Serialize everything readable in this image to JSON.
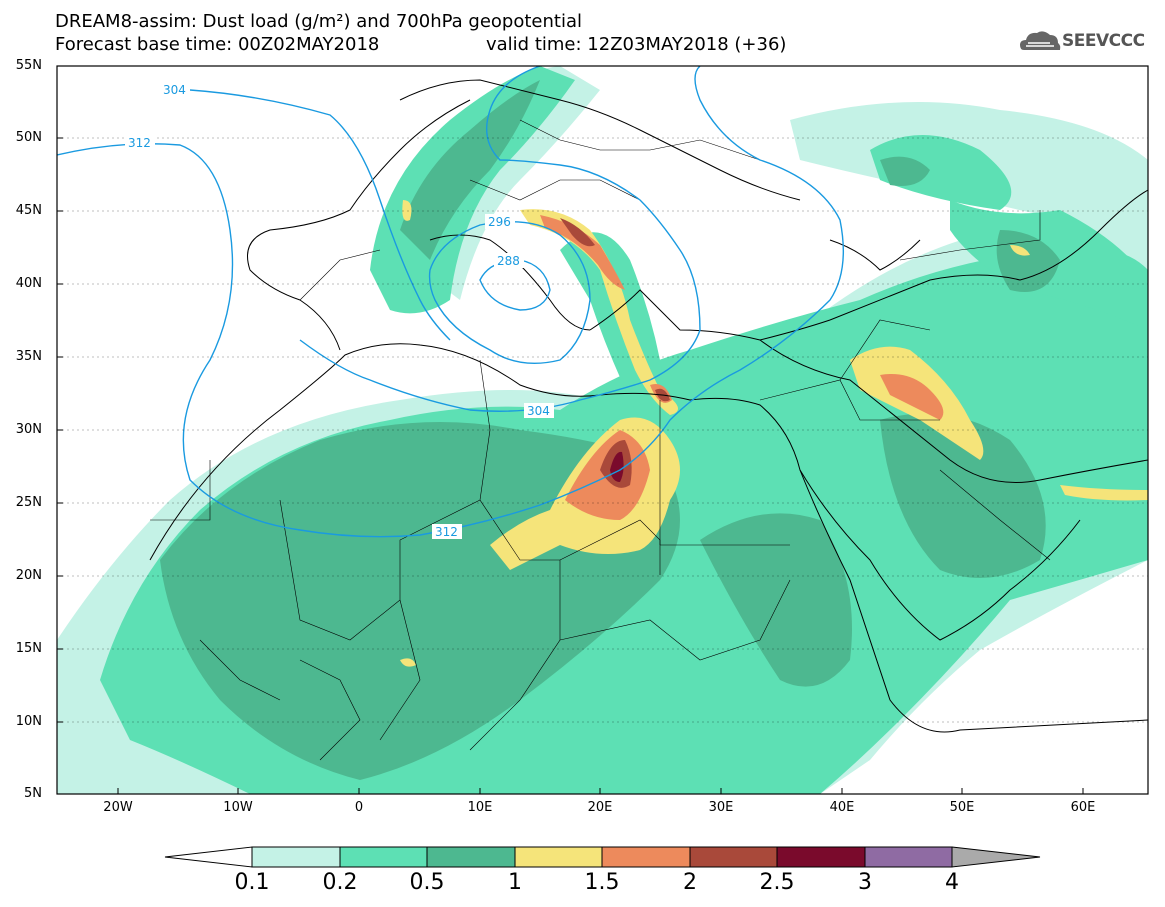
{
  "header": {
    "title_line1": "DREAM8-assim: Dust load (g/m²) and 700hPa geopotential",
    "base_time": "Forecast base time: 00Z02MAY2018",
    "valid_time": "valid time: 12Z03MAY2018 (+36)",
    "logo_text": "SEEVCCC"
  },
  "axes": {
    "lat_labels": [
      "55N",
      "50N",
      "45N",
      "40N",
      "35N",
      "30N",
      "25N",
      "20N",
      "15N",
      "10N",
      "5N"
    ],
    "lon_labels": [
      "20W",
      "10W",
      "0",
      "10E",
      "20E",
      "30E",
      "40E",
      "50E",
      "60E"
    ]
  },
  "contours": {
    "labels": [
      "304",
      "312",
      "296",
      "288",
      "304",
      "312"
    ]
  },
  "colorbar": {
    "ticks": [
      "0.1",
      "0.2",
      "0.5",
      "1",
      "1.5",
      "2",
      "2.5",
      "3",
      "4"
    ],
    "colors": [
      "#c4f2e6",
      "#5de0b4",
      "#4db890",
      "#f5e47a",
      "#ed8a5c",
      "#a9493a",
      "#7a0a2c",
      "#8f6ba3",
      "#aaaaaa"
    ],
    "under_color": "#ffffff"
  },
  "palette": {
    "land_border": "#000000",
    "contour_line": "#1a9ae0",
    "label_text": "#1a9ae0"
  }
}
